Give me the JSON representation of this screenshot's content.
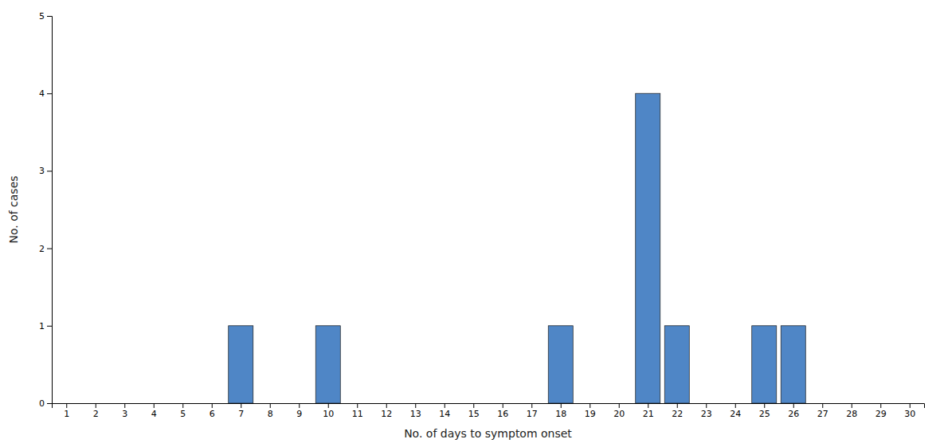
{
  "chart_data": {
    "type": "bar",
    "x": [
      7,
      10,
      18,
      21,
      22,
      25,
      26
    ],
    "values": [
      1,
      1,
      1,
      4,
      1,
      1,
      1
    ],
    "color": "#4f86c6",
    "xlabel": "No. of days to symptom onset",
    "ylabel": "No. of cases",
    "xlim": [
      0.5,
      30.5
    ],
    "ylim": [
      0,
      5
    ],
    "xticks": [
      1,
      2,
      3,
      4,
      5,
      6,
      7,
      8,
      9,
      10,
      11,
      12,
      13,
      14,
      15,
      16,
      17,
      18,
      19,
      20,
      21,
      22,
      23,
      24,
      25,
      26,
      27,
      28,
      29,
      30
    ],
    "yticks": [
      0,
      1,
      2,
      3,
      4,
      5
    ],
    "grid": false
  }
}
